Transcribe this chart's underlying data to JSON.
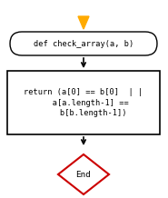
{
  "bg_color": "#ffffff",
  "arrow_color": "#000000",
  "start_arrow_color": "#ffaa00",
  "oval_text": "def check_array(a, b)",
  "oval_bg": "#ffffff",
  "oval_border": "#000000",
  "rect_text": "return (a[0] == b[0]  | |\n   a[a.length-1] ==\n    b[b.length-1])",
  "rect_bg": "#ffffff",
  "rect_border": "#000000",
  "diamond_text": "End",
  "diamond_bg": "#ffffff",
  "diamond_border": "#cc0000",
  "font_size": 6.2,
  "font_family": "monospace"
}
